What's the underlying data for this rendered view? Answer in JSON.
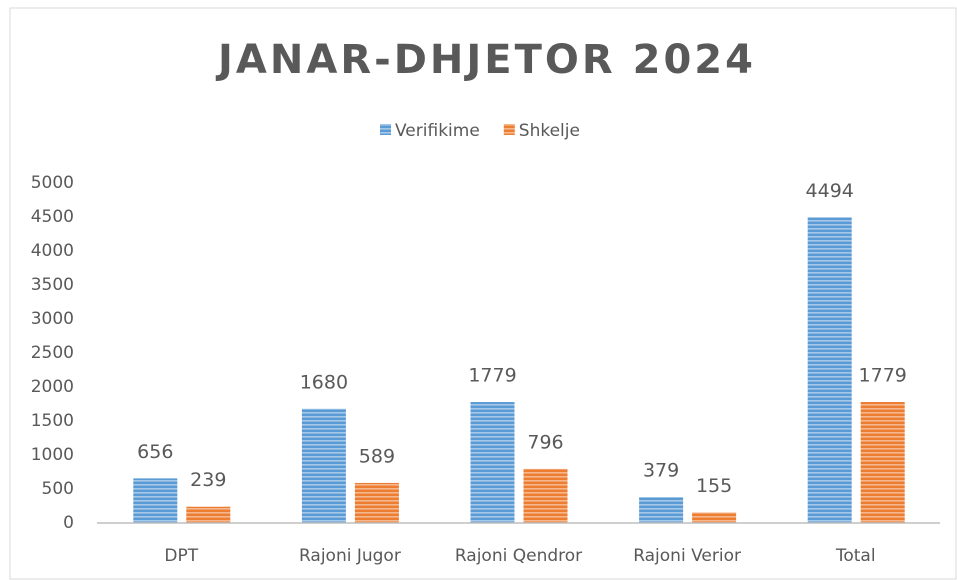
{
  "chart_data": {
    "type": "bar",
    "title": "JANAR-DHJETOR 2024",
    "categories": [
      "DPT",
      "Rajoni Jugor",
      "Rajoni Qendror",
      "Rajoni Verior",
      "Total"
    ],
    "series": [
      {
        "name": "Verifikime",
        "color": "#5b9bd5",
        "values": [
          656,
          1680,
          1779,
          379,
          4494
        ]
      },
      {
        "name": "Shkelje",
        "color": "#ed7d31",
        "values": [
          239,
          589,
          796,
          155,
          1779
        ]
      }
    ],
    "ylim": [
      0,
      5000
    ],
    "yticks": [
      0,
      500,
      1000,
      1500,
      2000,
      2500,
      3000,
      3500,
      4000,
      4500,
      5000
    ],
    "grid": false,
    "legend": "top"
  }
}
